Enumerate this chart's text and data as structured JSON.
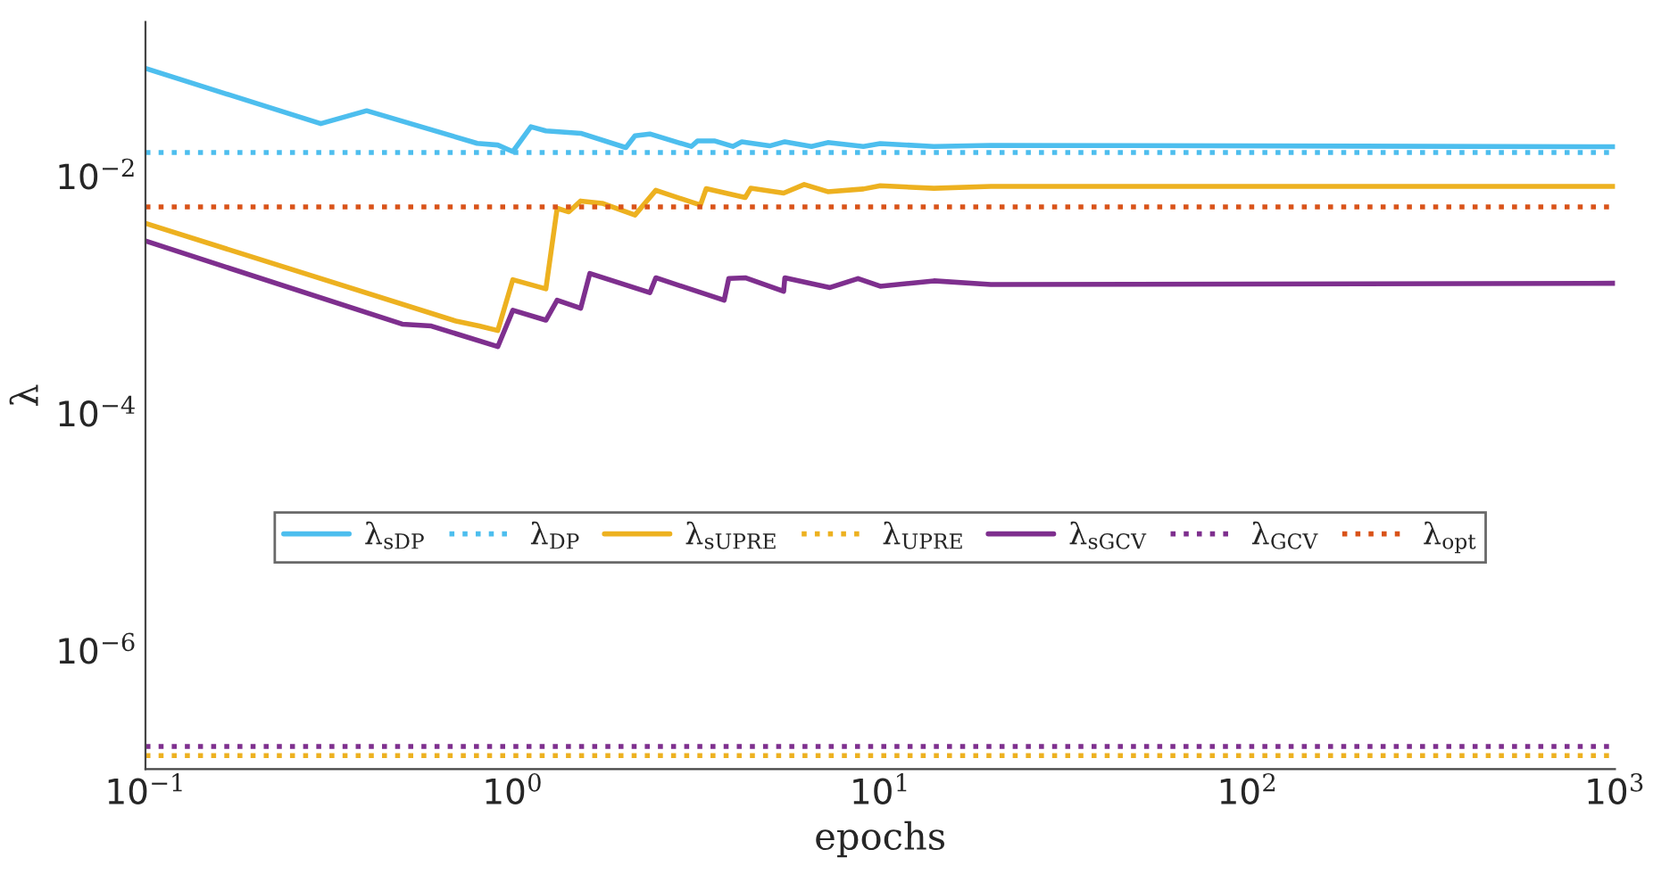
{
  "chart_data": {
    "type": "line",
    "xlabel": "epochs",
    "ylabel": "λ",
    "log": "xy",
    "grid": false,
    "legend": "center",
    "line_style": "solid",
    "marker": "none",
    "xlim": [
      0.1,
      1000
    ],
    "ylim": [
      1e-07,
      0.2
    ],
    "xticks": [
      {
        "value": 0.1,
        "label": "10$^{−1}$"
      },
      {
        "value": 1,
        "label": "10$^{0}$"
      },
      {
        "value": 10,
        "label": "10$^{1}$"
      },
      {
        "value": 100,
        "label": "10$^{2}$"
      },
      {
        "value": 1000,
        "label": "10$^{3}$"
      }
    ],
    "yticks": [
      {
        "value": 1e-06,
        "label": "10$^{−6}$"
      },
      {
        "value": 0.0001,
        "label": "10$^{−4}$"
      },
      {
        "value": 0.01,
        "label": "10$^{−2}$"
      }
    ],
    "series": [
      {
        "name": "λ$_{sDP}$",
        "color": "#4dbeee",
        "x": [
          0.1,
          0.3,
          0.4,
          0.8,
          0.91,
          1.0,
          1.12,
          1.23,
          1.53,
          2.03,
          2.15,
          2.36,
          3.06,
          3.18,
          3.55,
          3.97,
          4.2,
          5.0,
          5.5,
          6.5,
          7.2,
          9.0,
          10,
          14,
          20,
          1000
        ],
        "values": [
          0.081,
          0.0277,
          0.0356,
          0.0189,
          0.0183,
          0.0161,
          0.0261,
          0.0241,
          0.023,
          0.0174,
          0.0219,
          0.0227,
          0.0178,
          0.0198,
          0.0198,
          0.0178,
          0.0195,
          0.018,
          0.0195,
          0.0178,
          0.0192,
          0.0178,
          0.0188,
          0.0178,
          0.0182,
          0.0177
        ]
      },
      {
        "name": "λ$_{DP}$",
        "color": "#4dbeee",
        "line_style": "dotted",
        "x": [
          0.1,
          1000
        ],
        "values": [
          0.0158,
          0.0158
        ]
      },
      {
        "name": "λ$_{sUPRE}$",
        "color": "#edb120",
        "x": [
          0.1,
          0.7,
          0.81,
          0.91,
          1.0,
          1.23,
          1.32,
          1.42,
          1.53,
          1.75,
          2.15,
          2.45,
          3.24,
          3.36,
          4.29,
          4.44,
          5.46,
          6.21,
          7.2,
          9.0,
          10,
          14,
          20,
          1000
        ],
        "values": [
          0.004,
          0.0006,
          0.000545,
          0.000499,
          0.00134,
          0.00112,
          0.00536,
          0.005,
          0.00617,
          0.0059,
          0.0047,
          0.0076,
          0.0057,
          0.00785,
          0.0066,
          0.0079,
          0.0072,
          0.0085,
          0.0074,
          0.0078,
          0.0083,
          0.0079,
          0.0082,
          0.0082
        ]
      },
      {
        "name": "λ$_{UPRE}$",
        "color": "#edb120",
        "line_style": "dotted",
        "x": [
          0.1,
          1000
        ],
        "values": [
          1.3e-07,
          1.3e-07
        ]
      },
      {
        "name": "λ$_{sGCV}$",
        "color": "#7e2f8e",
        "x": [
          0.1,
          0.5,
          0.6,
          0.91,
          1.0,
          1.23,
          1.32,
          1.53,
          1.62,
          2.36,
          2.45,
          3.76,
          3.87,
          4.29,
          5.46,
          5.5,
          7.3,
          8.7,
          10,
          14,
          20,
          1000
        ],
        "values": [
          0.00284,
          0.000565,
          0.000545,
          0.000365,
          0.00074,
          0.00061,
          0.0009,
          0.00077,
          0.00151,
          0.00104,
          0.00139,
          0.0009,
          0.00137,
          0.00139,
          0.00107,
          0.00139,
          0.00115,
          0.00137,
          0.00118,
          0.00131,
          0.00122,
          0.00125
        ]
      },
      {
        "name": "λ$_{GCV}$",
        "color": "#7e2f8e",
        "line_style": "dotted",
        "x": [
          0.1,
          1000
        ],
        "values": [
          1.55e-07,
          1.55e-07
        ]
      },
      {
        "name": "λ$_{opt}$",
        "color": "#d95319",
        "line_style": "dotted",
        "x": [
          0.1,
          1000
        ],
        "values": [
          0.0055,
          0.0055
        ]
      }
    ]
  }
}
